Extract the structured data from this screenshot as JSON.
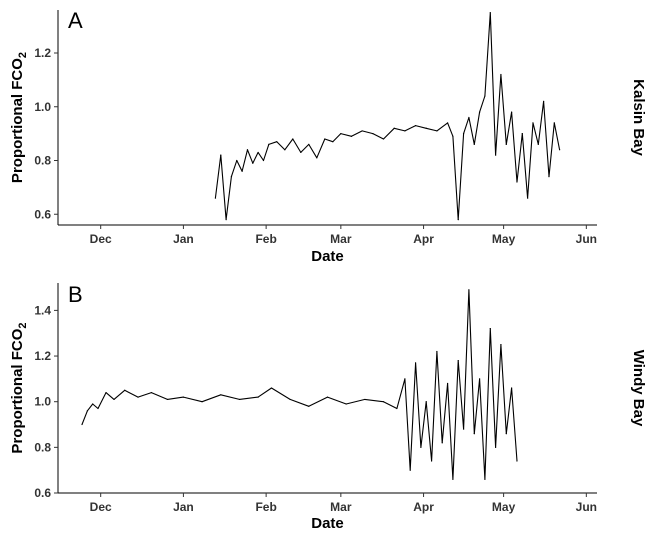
{
  "chart_data": [
    {
      "type": "line",
      "panel_label": "A",
      "strip_label": "Kalsin Bay",
      "xlabel": "Date",
      "ylabel_main": "Proportional FCO",
      "ylabel_sub": "2",
      "x_tick_labels": [
        "Dec",
        "Jan",
        "Feb",
        "Mar",
        "Apr",
        "May",
        "Jun"
      ],
      "x_ticks": [
        "2014-12-01",
        "2015-01-01",
        "2015-02-01",
        "2015-03-01",
        "2015-04-01",
        "2015-05-01",
        "2015-06-01"
      ],
      "xlim": [
        "2014-11-15",
        "2015-06-05"
      ],
      "y_tick_labels": [
        "0.6",
        "0.8",
        "1.0",
        "1.2"
      ],
      "y_ticks": [
        0.6,
        0.8,
        1.0,
        1.2
      ],
      "ylim": [
        0.56,
        1.36
      ],
      "grid": false,
      "series": [
        {
          "color": "#000000",
          "x": [
            "2015-01-13",
            "2015-01-15",
            "2015-01-17",
            "2015-01-19",
            "2015-01-21",
            "2015-01-23",
            "2015-01-25",
            "2015-01-27",
            "2015-01-29",
            "2015-01-31",
            "2015-02-02",
            "2015-02-05",
            "2015-02-08",
            "2015-02-11",
            "2015-02-14",
            "2015-02-17",
            "2015-02-20",
            "2015-02-23",
            "2015-02-26",
            "2015-03-01",
            "2015-03-05",
            "2015-03-09",
            "2015-03-13",
            "2015-03-17",
            "2015-03-21",
            "2015-03-25",
            "2015-03-29",
            "2015-04-02",
            "2015-04-06",
            "2015-04-10",
            "2015-04-12",
            "2015-04-14",
            "2015-04-16",
            "2015-04-18",
            "2015-04-20",
            "2015-04-22",
            "2015-04-24",
            "2015-04-26",
            "2015-04-28",
            "2015-04-30",
            "2015-05-02",
            "2015-05-04",
            "2015-05-06",
            "2015-05-08",
            "2015-05-10",
            "2015-05-12",
            "2015-05-14",
            "2015-05-16",
            "2015-05-18",
            "2015-05-20",
            "2015-05-22"
          ],
          "y": [
            0.66,
            0.82,
            0.58,
            0.74,
            0.8,
            0.76,
            0.84,
            0.79,
            0.83,
            0.8,
            0.86,
            0.87,
            0.84,
            0.88,
            0.83,
            0.86,
            0.81,
            0.88,
            0.87,
            0.9,
            0.89,
            0.91,
            0.9,
            0.88,
            0.92,
            0.91,
            0.93,
            0.92,
            0.91,
            0.94,
            0.89,
            0.58,
            0.9,
            0.96,
            0.86,
            0.98,
            1.04,
            1.35,
            0.82,
            1.12,
            0.86,
            0.98,
            0.72,
            0.9,
            0.66,
            0.94,
            0.86,
            1.02,
            0.74,
            0.94,
            0.84
          ]
        }
      ]
    },
    {
      "type": "line",
      "panel_label": "B",
      "strip_label": "Windy Bay",
      "xlabel": "Date",
      "ylabel_main": "Proportional FCO",
      "ylabel_sub": "2",
      "x_tick_labels": [
        "Dec",
        "Jan",
        "Feb",
        "Mar",
        "Apr",
        "May",
        "Jun"
      ],
      "x_ticks": [
        "2014-12-01",
        "2015-01-01",
        "2015-02-01",
        "2015-03-01",
        "2015-04-01",
        "2015-05-01",
        "2015-06-01"
      ],
      "xlim": [
        "2014-11-15",
        "2015-06-05"
      ],
      "y_tick_labels": [
        "0.6",
        "0.8",
        "1.0",
        "1.2",
        "1.4"
      ],
      "y_ticks": [
        0.6,
        0.8,
        1.0,
        1.2,
        1.4
      ],
      "ylim": [
        0.6,
        1.52
      ],
      "grid": false,
      "series": [
        {
          "color": "#000000",
          "x": [
            "2014-11-24",
            "2014-11-26",
            "2014-11-28",
            "2014-11-30",
            "2014-12-03",
            "2014-12-06",
            "2014-12-10",
            "2014-12-15",
            "2014-12-20",
            "2014-12-26",
            "2015-01-01",
            "2015-01-08",
            "2015-01-15",
            "2015-01-22",
            "2015-01-29",
            "2015-02-03",
            "2015-02-10",
            "2015-02-17",
            "2015-02-24",
            "2015-03-03",
            "2015-03-10",
            "2015-03-17",
            "2015-03-22",
            "2015-03-25",
            "2015-03-27",
            "2015-03-29",
            "2015-03-31",
            "2015-04-02",
            "2015-04-04",
            "2015-04-06",
            "2015-04-08",
            "2015-04-10",
            "2015-04-12",
            "2015-04-14",
            "2015-04-16",
            "2015-04-18",
            "2015-04-20",
            "2015-04-22",
            "2015-04-24",
            "2015-04-26",
            "2015-04-28",
            "2015-04-30",
            "2015-05-02",
            "2015-05-04",
            "2015-05-06"
          ],
          "y": [
            0.9,
            0.96,
            0.99,
            0.97,
            1.04,
            1.01,
            1.05,
            1.02,
            1.04,
            1.01,
            1.02,
            1.0,
            1.03,
            1.01,
            1.02,
            1.06,
            1.01,
            0.98,
            1.02,
            0.99,
            1.01,
            1.0,
            0.97,
            1.1,
            0.7,
            1.17,
            0.8,
            1.0,
            0.74,
            1.22,
            0.82,
            1.08,
            0.66,
            1.18,
            0.88,
            1.49,
            0.86,
            1.1,
            0.66,
            1.32,
            0.8,
            1.25,
            0.86,
            1.06,
            0.74
          ]
        }
      ]
    }
  ]
}
